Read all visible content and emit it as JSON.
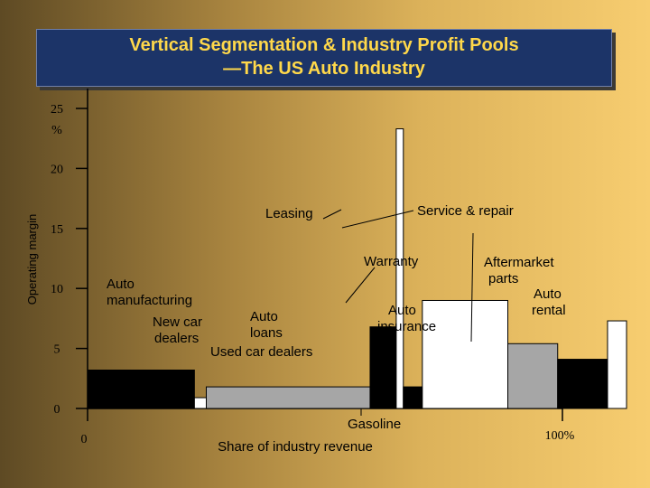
{
  "chart_data": {
    "type": "bar",
    "title_line1": "Vertical Segmentation & Industry Profit Pools",
    "title_line2": "—The US Auto Industry",
    "ylabel": "Operating margin",
    "xlabel": "Share of industry revenue",
    "ylim": [
      0,
      25
    ],
    "xlim": [
      0,
      100
    ],
    "y_ticks": [
      "0",
      "5",
      "10",
      "15",
      "20",
      "25"
    ],
    "y_unit": "%",
    "x_tick_start": "0",
    "x_tick_end": "100%",
    "segments": [
      {
        "label": "Auto manufacturing",
        "share": 22.5,
        "margin": 3.2,
        "color": "#000000"
      },
      {
        "label": "New car dealers",
        "share": 2.5,
        "margin": 0.9,
        "color": "#ffffff"
      },
      {
        "label": "Used car dealers",
        "share": 34.5,
        "margin": 1.8,
        "color": "#a6a6a6"
      },
      {
        "label": "Auto loans",
        "share": 5.5,
        "margin": 6.8,
        "color": "#000000"
      },
      {
        "label": "Leasing",
        "share": 1.5,
        "margin": 23.3,
        "color": "#ffffff"
      },
      {
        "label": "Gasoline",
        "share": 4,
        "margin": 1.8,
        "color": "#000000"
      },
      {
        "label": "Auto insurance",
        "share": 18,
        "margin": 9.0,
        "color": "#ffffff"
      },
      {
        "label": "Warranty",
        "share": 0,
        "margin": 0,
        "color": "#ffffff"
      },
      {
        "label": "Service & repair",
        "share": 10.5,
        "margin": 5.4,
        "color": "#a6a6a6"
      },
      {
        "label": "Aftermarket parts",
        "share": 10.5,
        "margin": 4.1,
        "color": "#000000"
      },
      {
        "label": "Auto rental",
        "share": 4,
        "margin": 7.3,
        "color": "#ffffff"
      }
    ],
    "annotations": {
      "auto_manufacturing": [
        "Auto",
        "manufacturing"
      ],
      "new_car_dealers": [
        "New car",
        "dealers"
      ],
      "auto_loans": [
        "Auto",
        "loans"
      ],
      "used_car_dealers": "Used car dealers",
      "leasing": "Leasing",
      "service_repair": "Service & repair",
      "warranty": "Warranty",
      "auto_insurance": [
        "Auto",
        "insurance"
      ],
      "gasoline": "Gasoline",
      "aftermarket_parts": [
        "Aftermarket",
        "parts"
      ],
      "auto_rental": [
        "Auto",
        "rental"
      ]
    }
  }
}
